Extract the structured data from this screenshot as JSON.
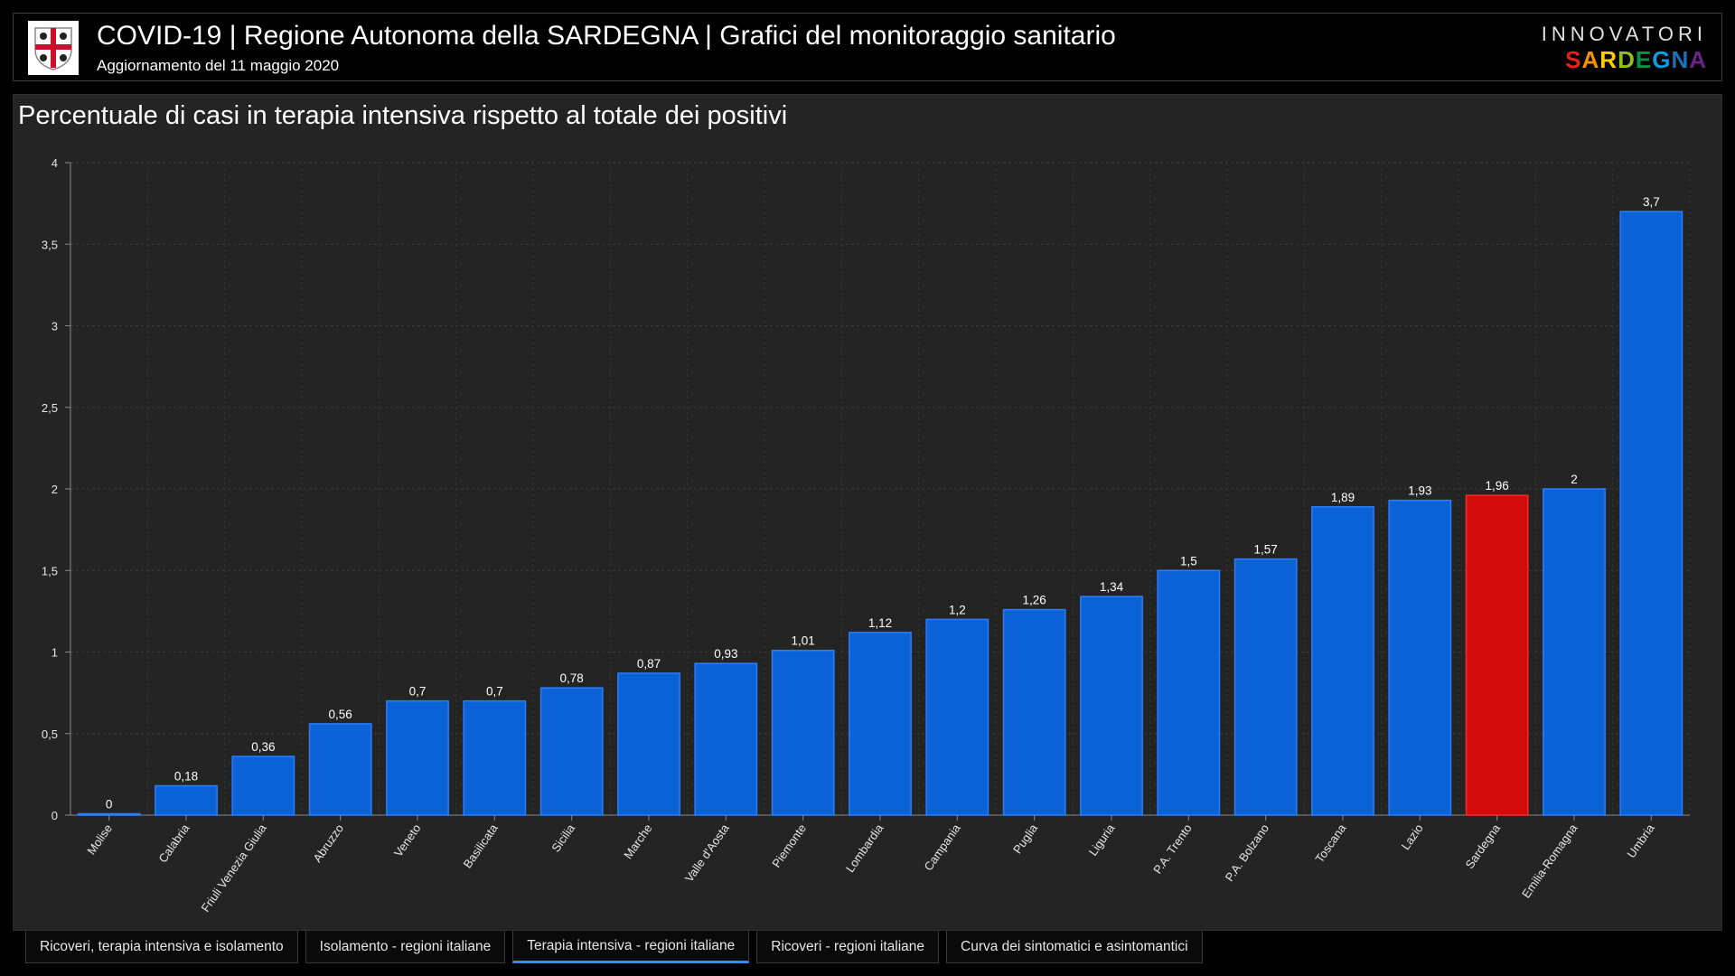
{
  "header": {
    "title": "COVID-19 | Regione Autonoma della SARDEGNA | Grafici del monitoraggio sanitario",
    "subtitle": "Aggiornamento del 11 maggio 2020",
    "brand_top": "INNOVATORI",
    "brand_bottom": "SARDEGNA"
  },
  "tabs": [
    {
      "label": "Ricoveri, terapia intensiva e isolamento",
      "active": false
    },
    {
      "label": "Isolamento - regioni italiane",
      "active": false
    },
    {
      "label": "Terapia intensiva - regioni italiane",
      "active": true
    },
    {
      "label": "Ricoveri - regioni italiane",
      "active": false
    },
    {
      "label": "Curva dei sintomatici e asintomantici",
      "active": false
    }
  ],
  "colors": {
    "bar": "#0a62d6",
    "bar_border": "#2a7fff",
    "highlight": "#d30b0b",
    "highlight_border": "#ff2a2a",
    "brand_letters": [
      "#e2231a",
      "#f39200",
      "#ffcc00",
      "#95c11f",
      "#009640",
      "#00a0e3",
      "#1d71b8",
      "#662483"
    ]
  },
  "chart_data": {
    "type": "bar",
    "title": "Percentuale di casi in terapia intensiva rispetto al totale dei positivi",
    "xlabel": "",
    "ylabel": "",
    "ylim": [
      0,
      4
    ],
    "yticks": [
      "0",
      "0,5",
      "1",
      "1,5",
      "2",
      "2,5",
      "3",
      "3,5",
      "4"
    ],
    "grid": true,
    "highlight": "Sardegna",
    "categories": [
      "Molise",
      "Calabria",
      "Friuli Venezia Giulia",
      "Abruzzo",
      "Veneto",
      "Basilicata",
      "Sicilia",
      "Marche",
      "Valle d'Aosta",
      "Piemonte",
      "Lombardia",
      "Campania",
      "Puglia",
      "Liguria",
      "P.A. Trento",
      "P.A. Bolzano",
      "Toscana",
      "Lazio",
      "Sardegna",
      "Emilia-Romagna",
      "Umbria"
    ],
    "values": [
      0,
      0.18,
      0.36,
      0.56,
      0.7,
      0.7,
      0.78,
      0.87,
      0.93,
      1.01,
      1.12,
      1.2,
      1.26,
      1.34,
      1.5,
      1.57,
      1.89,
      1.93,
      1.96,
      2,
      3.7
    ],
    "value_labels": [
      "0",
      "0,18",
      "0,36",
      "0,56",
      "0,7",
      "0,7",
      "0,78",
      "0,87",
      "0,93",
      "1,01",
      "1,12",
      "1,2",
      "1,26",
      "1,34",
      "1,5",
      "1,57",
      "1,89",
      "1,93",
      "1,96",
      "2",
      "3,7"
    ]
  }
}
